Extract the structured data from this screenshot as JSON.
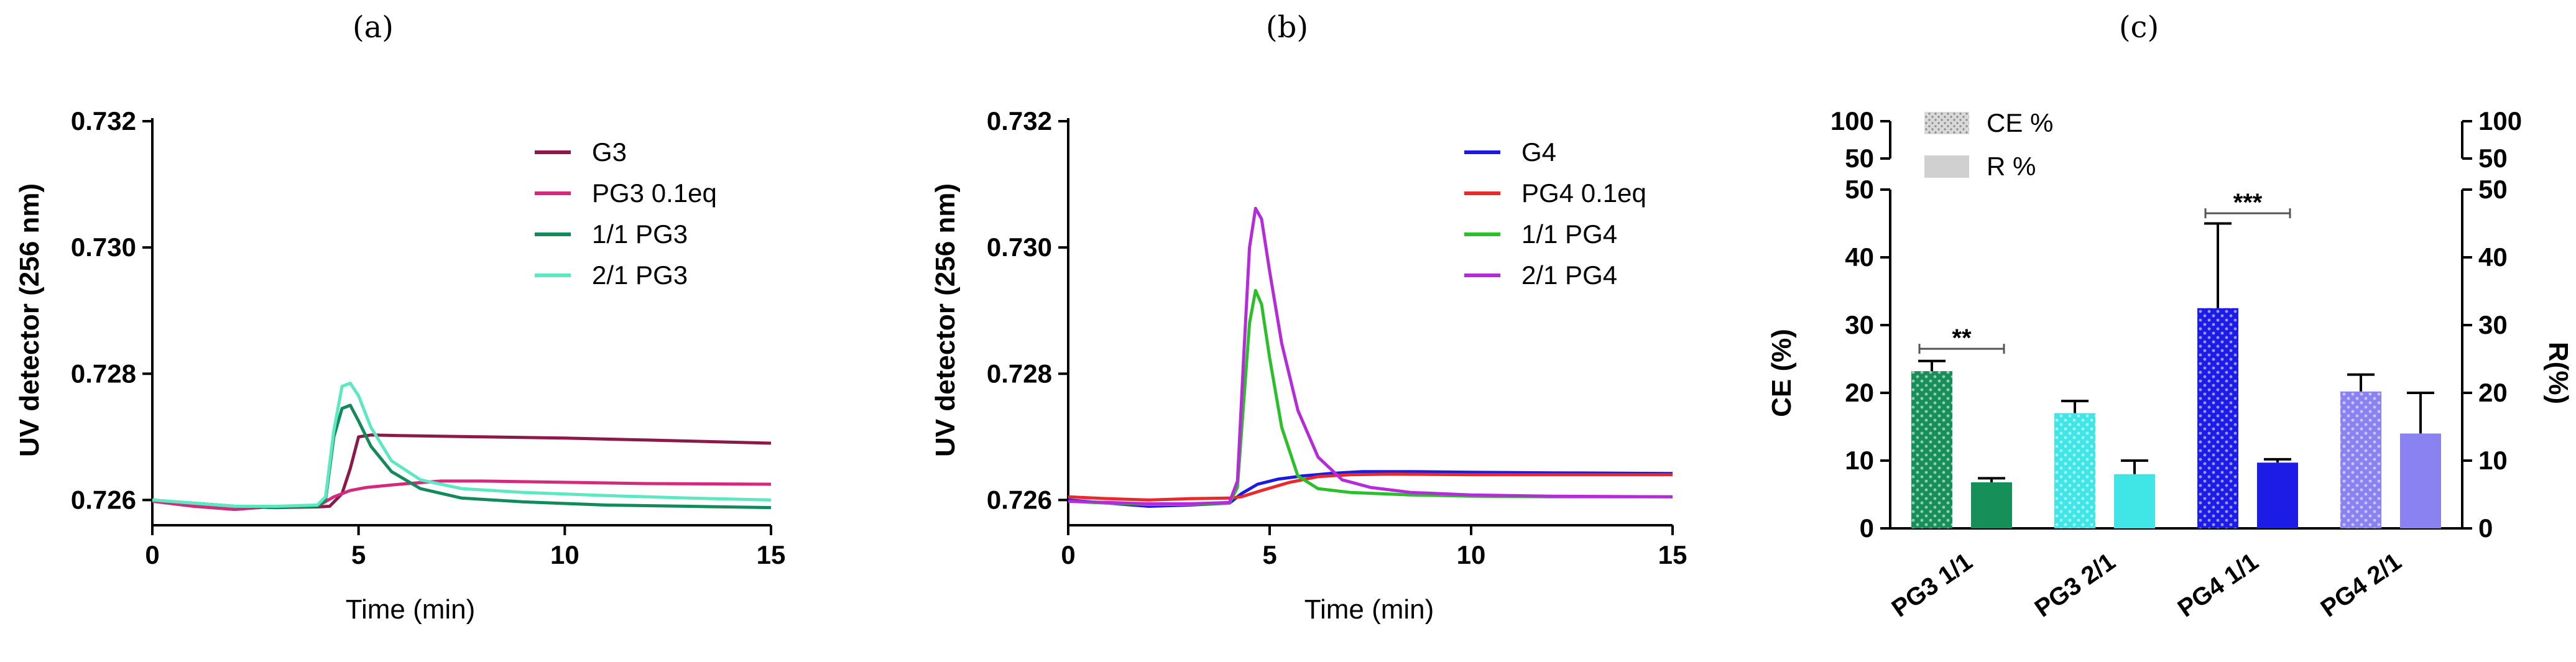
{
  "chart_data": [
    {
      "panel_label": "(a)",
      "type": "line",
      "xlabel": "Time (min)",
      "ylabel": "UV detector (256 nm)",
      "xlim": [
        0,
        15
      ],
      "ylim": [
        0.7256,
        0.732
      ],
      "xticks": [
        "0",
        "5",
        "10",
        "15"
      ],
      "xtick_values": [
        0,
        5,
        10,
        15
      ],
      "yticks": [
        "0.726",
        "0.728",
        "0.730",
        "0.732"
      ],
      "ytick_values": [
        0.726,
        0.728,
        0.73,
        0.732
      ],
      "legend_position": "top-right",
      "series": [
        {
          "name": "G3",
          "color": "#8b1a4a",
          "x": [
            0,
            1,
            2,
            3,
            4,
            4.3,
            4.6,
            4.8,
            5.0,
            5.3,
            6,
            8,
            10,
            12,
            15
          ],
          "y": [
            0.72598,
            0.72595,
            0.7259,
            0.72588,
            0.72589,
            0.7259,
            0.7261,
            0.7265,
            0.727,
            0.72703,
            0.72702,
            0.727,
            0.72698,
            0.72695,
            0.7269
          ]
        },
        {
          "name": "PG3 0.1eq",
          "color": "#d42a7e",
          "x": [
            0,
            1,
            2,
            3,
            4,
            4.4,
            4.8,
            5.2,
            6,
            7,
            8,
            10,
            12,
            15
          ],
          "y": [
            0.72598,
            0.7259,
            0.72585,
            0.7259,
            0.7259,
            0.72605,
            0.72615,
            0.7262,
            0.72625,
            0.7263,
            0.7263,
            0.72628,
            0.72626,
            0.72625
          ]
        },
        {
          "name": "1/1 PG3",
          "color": "#138a5c",
          "x": [
            0,
            1,
            2,
            3,
            4,
            4.2,
            4.4,
            4.6,
            4.8,
            5.0,
            5.3,
            5.8,
            6.5,
            7.5,
            9,
            11,
            13,
            15
          ],
          "y": [
            0.726,
            0.72595,
            0.7259,
            0.72588,
            0.7259,
            0.726,
            0.727,
            0.72745,
            0.7275,
            0.72725,
            0.72685,
            0.72645,
            0.72618,
            0.72603,
            0.72597,
            0.72592,
            0.7259,
            0.72588
          ]
        },
        {
          "name": "2/1 PG3",
          "color": "#5ce8c0",
          "x": [
            0,
            1,
            2,
            3,
            4,
            4.2,
            4.4,
            4.6,
            4.8,
            5.0,
            5.3,
            5.8,
            6.5,
            7.5,
            9,
            11,
            13,
            15
          ],
          "y": [
            0.726,
            0.72595,
            0.7259,
            0.7259,
            0.72592,
            0.72605,
            0.7271,
            0.7278,
            0.72785,
            0.72765,
            0.72715,
            0.72662,
            0.72632,
            0.72618,
            0.72612,
            0.72607,
            0.72603,
            0.726
          ]
        }
      ]
    },
    {
      "panel_label": "(b)",
      "type": "line",
      "xlabel": "Time (min)",
      "ylabel": "UV detector (256 nm)",
      "xlim": [
        0,
        15
      ],
      "ylim": [
        0.7256,
        0.732
      ],
      "xticks": [
        "0",
        "5",
        "10",
        "15"
      ],
      "xtick_values": [
        0,
        5,
        10,
        15
      ],
      "yticks": [
        "0.726",
        "0.728",
        "0.730",
        "0.732"
      ],
      "ytick_values": [
        0.726,
        0.728,
        0.73,
        0.732
      ],
      "legend_position": "top-right",
      "series": [
        {
          "name": "G4",
          "color": "#1a1ae0",
          "x": [
            0,
            1,
            2,
            3,
            4,
            4.3,
            4.7,
            5.2,
            5.8,
            6.5,
            7.3,
            8.5,
            10,
            12,
            15
          ],
          "y": [
            0.726,
            0.72595,
            0.7259,
            0.72592,
            0.72595,
            0.7261,
            0.72625,
            0.72633,
            0.72638,
            0.72642,
            0.72645,
            0.72645,
            0.72644,
            0.72643,
            0.72642
          ]
        },
        {
          "name": "PG4 0.1eq",
          "color": "#e82a2a",
          "x": [
            0,
            1,
            2,
            3,
            4,
            4.3,
            4.8,
            5.5,
            6.2,
            7,
            8,
            10,
            12,
            15
          ],
          "y": [
            0.72605,
            0.72602,
            0.726,
            0.72602,
            0.72603,
            0.72605,
            0.72615,
            0.72628,
            0.72637,
            0.7264,
            0.72641,
            0.7264,
            0.7264,
            0.7264
          ]
        },
        {
          "name": "1/1 PG4",
          "color": "#2cbf2c",
          "x": [
            0,
            1,
            2,
            3,
            4,
            4.2,
            4.35,
            4.5,
            4.65,
            4.8,
            5.0,
            5.3,
            5.7,
            6.2,
            7,
            8.5,
            10,
            12,
            15
          ],
          "y": [
            0.72598,
            0.72595,
            0.72593,
            0.72593,
            0.72595,
            0.7262,
            0.7275,
            0.7288,
            0.72932,
            0.7291,
            0.72825,
            0.72715,
            0.72638,
            0.72618,
            0.72612,
            0.72608,
            0.72606,
            0.72605,
            0.72605
          ]
        },
        {
          "name": "2/1 PG4",
          "color": "#b52bd9",
          "x": [
            0,
            1,
            2,
            3,
            4,
            4.2,
            4.35,
            4.5,
            4.65,
            4.8,
            5.0,
            5.3,
            5.7,
            6.2,
            6.8,
            7.5,
            8.5,
            10,
            12,
            15
          ],
          "y": [
            0.72598,
            0.72596,
            0.72594,
            0.72594,
            0.72596,
            0.7263,
            0.7282,
            0.73,
            0.73062,
            0.73045,
            0.72962,
            0.72848,
            0.72742,
            0.72668,
            0.72632,
            0.7262,
            0.72612,
            0.72608,
            0.72606,
            0.72605
          ]
        }
      ]
    },
    {
      "panel_label": "(c)",
      "type": "bar",
      "categories": [
        "PG3 1/1",
        "PG3 2/1",
        "PG4 1/1",
        "PG4  2/1"
      ],
      "ylabel_left": "CE (%)",
      "ylabel_right": "R(%)",
      "ylim": [
        0,
        50
      ],
      "yticks": [
        "0",
        "10",
        "20",
        "30",
        "40",
        "50"
      ],
      "ytick_values": [
        0,
        10,
        20,
        30,
        40,
        50
      ],
      "upper_ticks": [
        "50",
        "100"
      ],
      "upper_tick_values": [
        50,
        100
      ],
      "legend_position": "top-left",
      "series": [
        {
          "name": "CE %",
          "pattern": "dotted",
          "values": [
            23.2,
            17.0,
            32.5,
            20.2
          ],
          "errors": [
            1.5,
            1.8,
            12.5,
            2.5
          ],
          "colors": [
            "#168f58",
            "#40e6e6",
            "#1c1ce6",
            "#8a82f0"
          ]
        },
        {
          "name": "R %",
          "pattern": "solid",
          "values": [
            6.8,
            8.0,
            9.7,
            14.0
          ],
          "errors": [
            0.6,
            2.0,
            0.5,
            6.0
          ],
          "colors": [
            "#168f58",
            "#40e6e6",
            "#1c1ce6",
            "#8a82f0"
          ]
        }
      ],
      "significance": [
        {
          "label": "**",
          "category": 0
        },
        {
          "label": "***",
          "category": 2
        }
      ]
    }
  ]
}
